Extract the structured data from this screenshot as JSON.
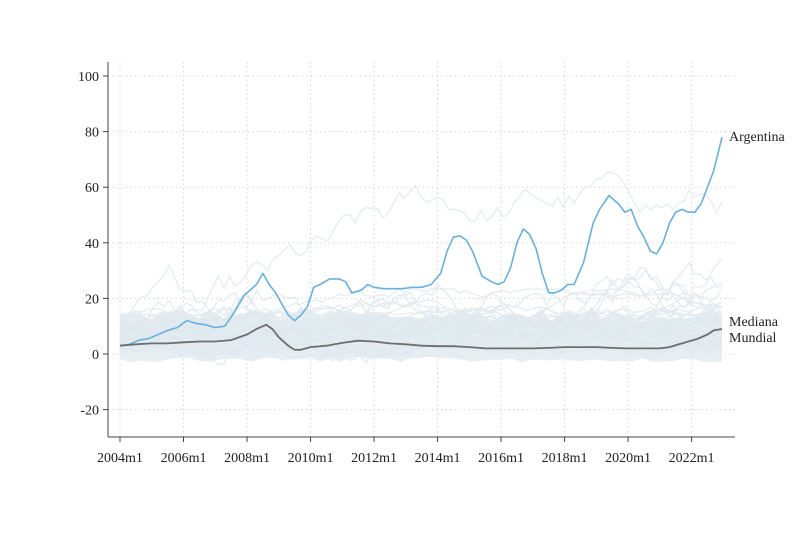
{
  "chart_data": {
    "type": "line",
    "title": "",
    "xlabel": "",
    "ylabel": "",
    "xlim": [
      2004.0,
      2022.958
    ],
    "ylim": [
      -25,
      100
    ],
    "grid": true,
    "x_ticks": [
      {
        "label": "2004m1",
        "x": 2004.0
      },
      {
        "label": "2006m1",
        "x": 2006.0
      },
      {
        "label": "2008m1",
        "x": 2008.0
      },
      {
        "label": "2010m1",
        "x": 2010.0
      },
      {
        "label": "2012m1",
        "x": 2012.0
      },
      {
        "label": "2014m1",
        "x": 2014.0
      },
      {
        "label": "2016m1",
        "x": 2016.0
      },
      {
        "label": "2018m1",
        "x": 2018.0
      },
      {
        "label": "2020m1",
        "x": 2020.0
      },
      {
        "label": "2022m1",
        "x": 2022.0
      }
    ],
    "y_ticks": [
      {
        "label": "100",
        "y": 100
      },
      {
        "label": "80",
        "y": 80
      },
      {
        "label": "60",
        "y": 60
      },
      {
        "label": "40",
        "y": 40
      },
      {
        "label": "20",
        "y": 20
      },
      {
        "label": "0",
        "y": 0
      },
      {
        "label": "-20",
        "y": -20
      }
    ],
    "colors": {
      "argentina": "#6ab0dc",
      "median": "#6e6e6e",
      "other_countries": "#dfe9ee",
      "band": "#e6eef2",
      "axis": "#444444",
      "grid": "#d4d4d4"
    },
    "series": [
      {
        "name": "Argentina",
        "x": [
          2004.0,
          2004.3,
          2004.6,
          2004.9,
          2005.2,
          2005.5,
          2005.8,
          2006.1,
          2006.4,
          2006.7,
          2007.0,
          2007.3,
          2007.6,
          2007.9,
          2008.1,
          2008.3,
          2008.5,
          2008.7,
          2008.9,
          2009.1,
          2009.3,
          2009.5,
          2009.7,
          2009.9,
          2010.1,
          2010.3,
          2010.6,
          2010.9,
          2011.1,
          2011.3,
          2011.6,
          2011.8,
          2012.0,
          2012.3,
          2012.6,
          2012.9,
          2013.2,
          2013.5,
          2013.8,
          2014.1,
          2014.3,
          2014.5,
          2014.7,
          2014.9,
          2015.1,
          2015.4,
          2015.7,
          2015.9,
          2016.1,
          2016.3,
          2016.5,
          2016.7,
          2016.9,
          2017.1,
          2017.3,
          2017.5,
          2017.7,
          2017.9,
          2018.1,
          2018.3,
          2018.6,
          2018.9,
          2019.1,
          2019.4,
          2019.7,
          2019.9,
          2020.1,
          2020.3,
          2020.5,
          2020.7,
          2020.9,
          2021.1,
          2021.3,
          2021.5,
          2021.7,
          2021.9,
          2022.1,
          2022.3,
          2022.5,
          2022.7,
          2022.958
        ],
        "values": [
          3,
          3.5,
          5,
          5.5,
          7,
          8.5,
          9.5,
          12,
          11,
          10.5,
          9.5,
          10,
          15,
          21,
          23,
          25,
          29,
          25,
          22,
          18,
          14,
          12,
          14,
          17,
          24,
          25,
          27,
          27,
          26,
          22,
          23,
          25,
          24,
          23.5,
          23.5,
          23.5,
          24,
          24,
          25,
          29,
          37,
          42,
          42.5,
          41,
          37,
          28,
          26,
          25,
          26,
          31,
          40,
          45,
          43,
          38,
          29,
          22,
          22,
          23,
          25,
          25,
          33,
          47,
          52,
          57,
          54,
          51,
          52,
          46,
          42,
          37,
          36,
          40,
          47,
          51,
          52,
          51,
          51,
          54,
          60,
          66,
          78
        ]
      },
      {
        "name": "Mediana Mundial",
        "x": [
          2004.0,
          2004.5,
          2005.0,
          2005.5,
          2006.0,
          2006.5,
          2007.0,
          2007.5,
          2008.0,
          2008.3,
          2008.6,
          2008.8,
          2009.0,
          2009.3,
          2009.5,
          2009.7,
          2010.0,
          2010.5,
          2011.0,
          2011.5,
          2012.0,
          2012.5,
          2013.0,
          2013.5,
          2014.0,
          2014.5,
          2015.0,
          2015.5,
          2016.0,
          2016.5,
          2017.0,
          2017.5,
          2018.0,
          2018.5,
          2019.0,
          2019.5,
          2020.0,
          2020.5,
          2021.0,
          2021.3,
          2021.6,
          2021.9,
          2022.2,
          2022.5,
          2022.7,
          2022.958
        ],
        "values": [
          3,
          3.5,
          3.8,
          3.8,
          4.2,
          4.5,
          4.5,
          5,
          7,
          9,
          10.5,
          9,
          6,
          3,
          1.5,
          1.5,
          2.5,
          3,
          4,
          4.8,
          4.5,
          3.8,
          3.5,
          3,
          2.8,
          2.8,
          2.5,
          2,
          2,
          2,
          2,
          2.2,
          2.5,
          2.5,
          2.5,
          2.2,
          2,
          2,
          2,
          2.5,
          3.5,
          4.5,
          5.5,
          7,
          8.5,
          9
        ]
      }
    ],
    "labels": {
      "argentina": "Argentina",
      "median_line1": "Mediana",
      "median_line2": "Mundial"
    }
  }
}
